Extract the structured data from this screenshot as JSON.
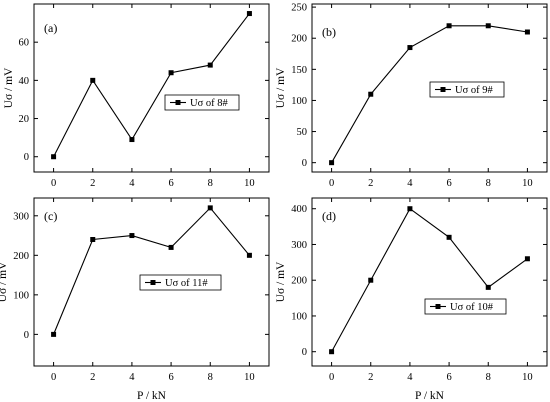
{
  "chart_data": [
    {
      "type": "line",
      "panel_label": "(a)",
      "x": [
        0,
        2,
        4,
        6,
        8,
        10
      ],
      "xticks": [
        0,
        2,
        4,
        6,
        8,
        10
      ],
      "xlim": [
        -1,
        11
      ],
      "ylabel": "Uσ / mV",
      "xlabel": "",
      "yticks": [
        0,
        20,
        40,
        60
      ],
      "ylim": [
        -8,
        80
      ],
      "legend_position": "center-right",
      "series": [
        {
          "name": "Uσ of 8#",
          "values": [
            0,
            40,
            9,
            44,
            48,
            75
          ]
        }
      ]
    },
    {
      "type": "line",
      "panel_label": "(b)",
      "x": [
        0,
        2,
        4,
        6,
        8,
        10
      ],
      "xticks": [
        0,
        2,
        4,
        6,
        8,
        10
      ],
      "xlim": [
        -1,
        11
      ],
      "ylabel": "Uσ / mV",
      "xlabel": "",
      "yticks": [
        0,
        50,
        100,
        150,
        200,
        250
      ],
      "ylim": [
        -15,
        255
      ],
      "legend_position": "center-right",
      "series": [
        {
          "name": "Uσ of 9#",
          "values": [
            0,
            110,
            185,
            220,
            220,
            210
          ]
        }
      ]
    },
    {
      "type": "line",
      "panel_label": "(c)",
      "x": [
        0,
        2,
        4,
        6,
        8,
        10
      ],
      "xticks": [
        0,
        2,
        4,
        6,
        8,
        10
      ],
      "xlim": [
        -1,
        11
      ],
      "ylabel": "Uσ / mV",
      "xlabel": "P / kN",
      "yticks": [
        0,
        100,
        200,
        300
      ],
      "ylim": [
        -80,
        345
      ],
      "legend_position": "center",
      "series": [
        {
          "name": "Uσ of 11#",
          "values": [
            0,
            240,
            250,
            220,
            320,
            200
          ]
        }
      ]
    },
    {
      "type": "line",
      "panel_label": "(d)",
      "x": [
        0,
        2,
        4,
        6,
        8,
        10
      ],
      "xticks": [
        0,
        2,
        4,
        6,
        8,
        10
      ],
      "xlim": [
        -1,
        11
      ],
      "ylabel": "Uσ / mV",
      "xlabel": "P / kN",
      "yticks": [
        0,
        100,
        200,
        300,
        400
      ],
      "ylim": [
        -40,
        430
      ],
      "legend_position": "bottom-center",
      "series": [
        {
          "name": "Uσ of 10#",
          "values": [
            0,
            200,
            400,
            320,
            180,
            260
          ]
        }
      ]
    }
  ]
}
